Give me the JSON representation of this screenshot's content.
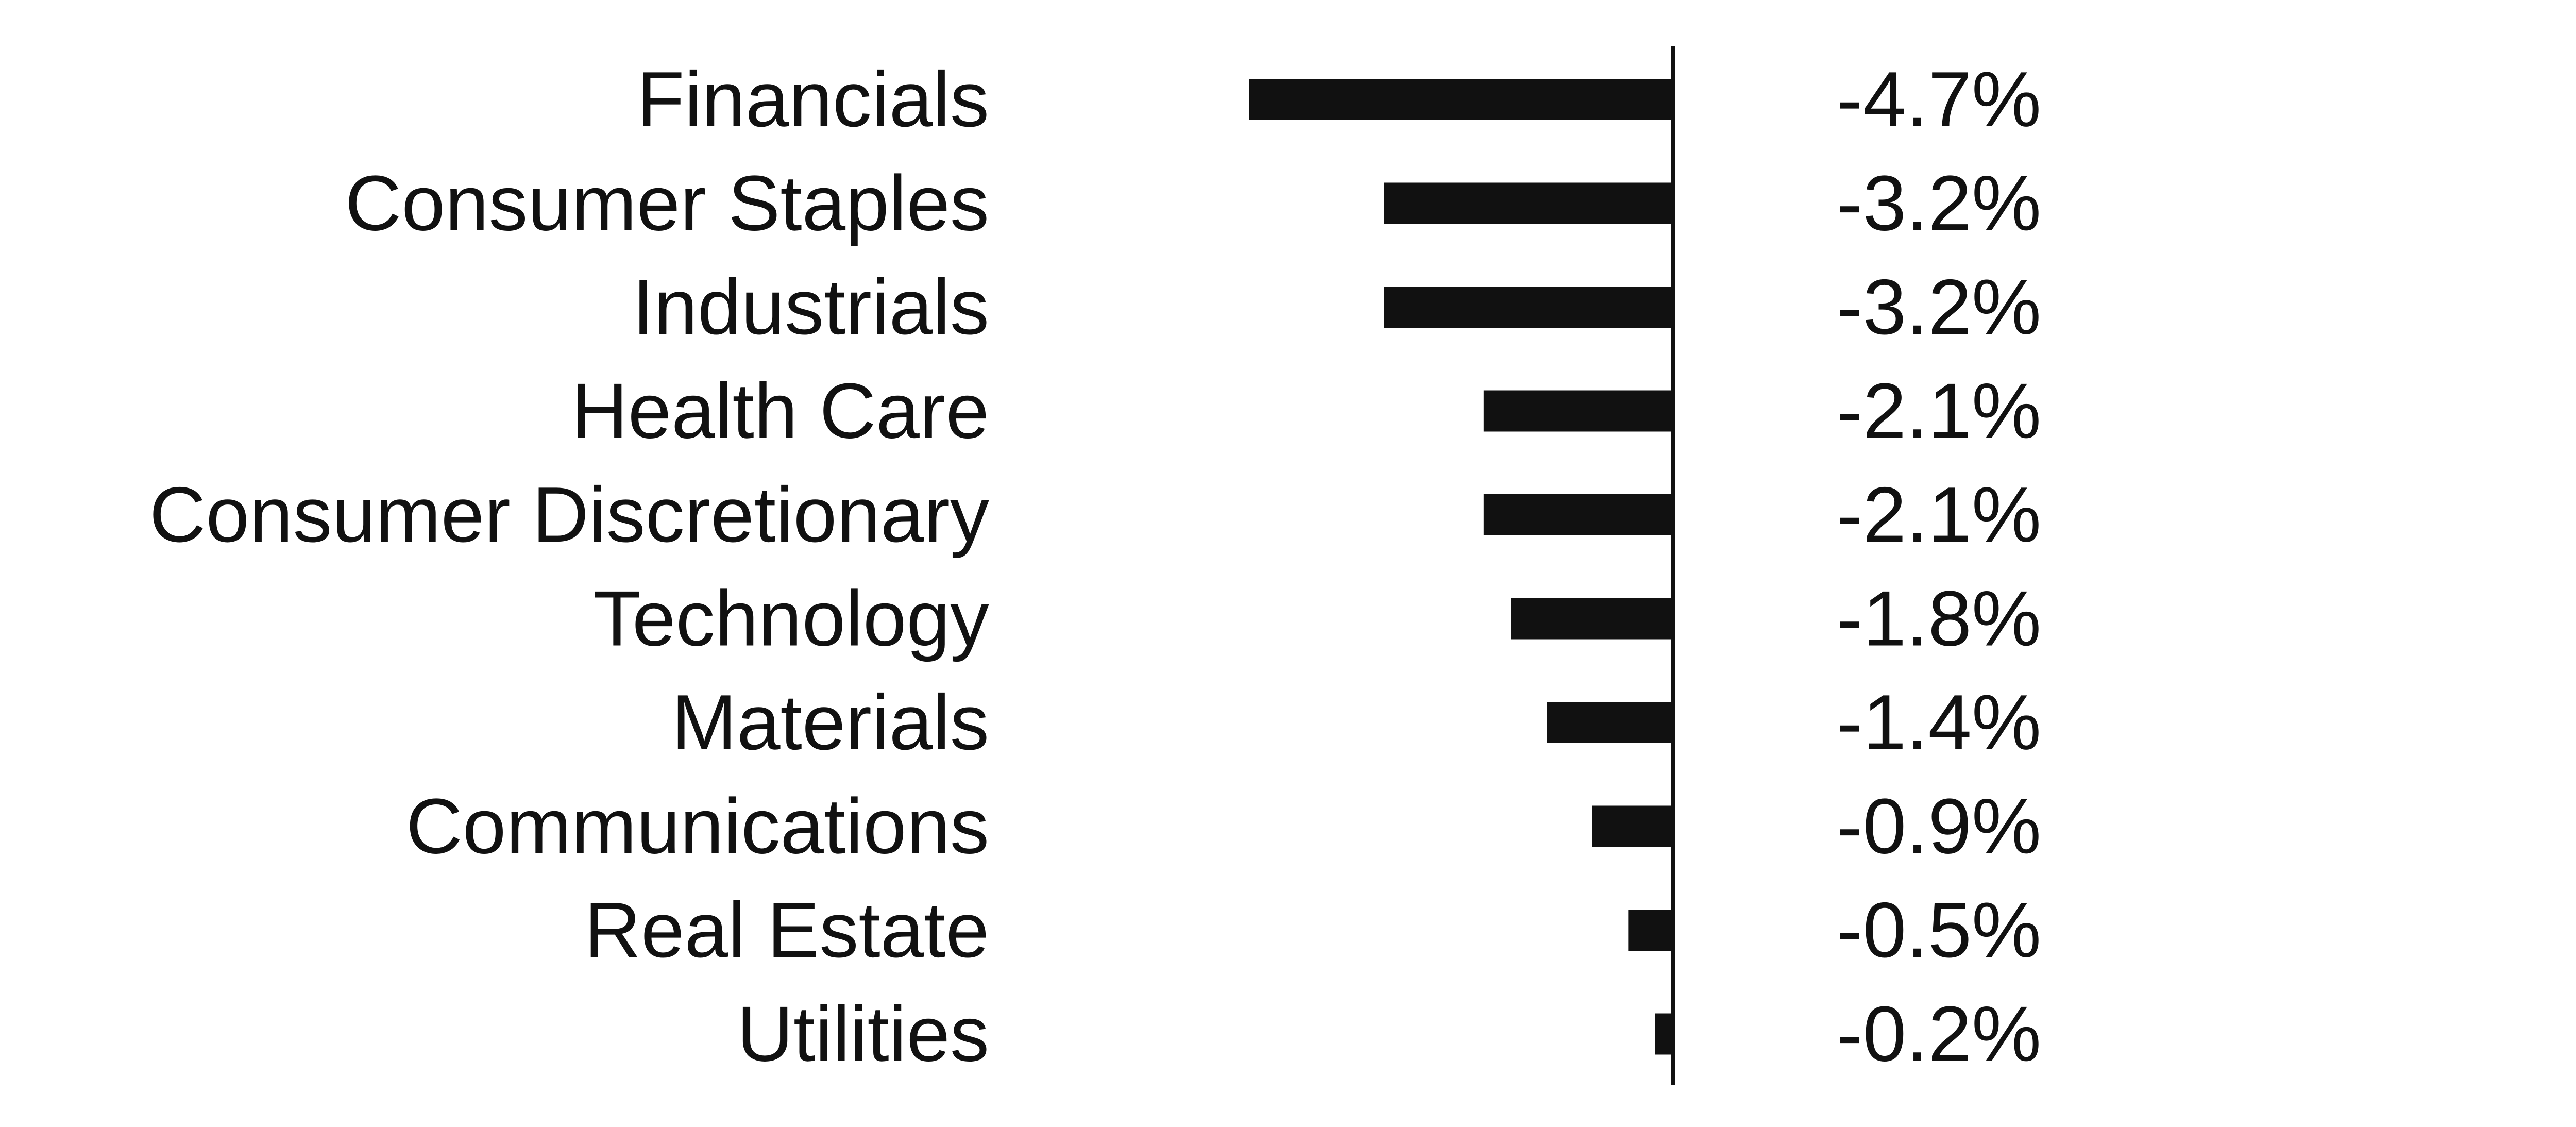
{
  "chart_data": {
    "type": "bar",
    "orientation": "horizontal",
    "categories": [
      "Financials",
      "Consumer Staples",
      "Industrials",
      "Health Care",
      "Consumer Discretionary",
      "Technology",
      "Materials",
      "Communications",
      "Real Estate",
      "Utilities"
    ],
    "values": [
      -4.7,
      -3.2,
      -3.2,
      -2.1,
      -2.1,
      -1.8,
      -1.4,
      -0.9,
      -0.5,
      -0.2
    ],
    "value_labels": [
      "-4.7%",
      "-3.2%",
      "-3.2%",
      "-2.1%",
      "-2.1%",
      "-1.8%",
      "-1.4%",
      "-0.9%",
      "-0.5%",
      "-0.2%"
    ],
    "xlim": [
      -4.7,
      0
    ],
    "bar_color": "#111111",
    "axis_color": "#111111",
    "grid": false,
    "legend": "none"
  }
}
